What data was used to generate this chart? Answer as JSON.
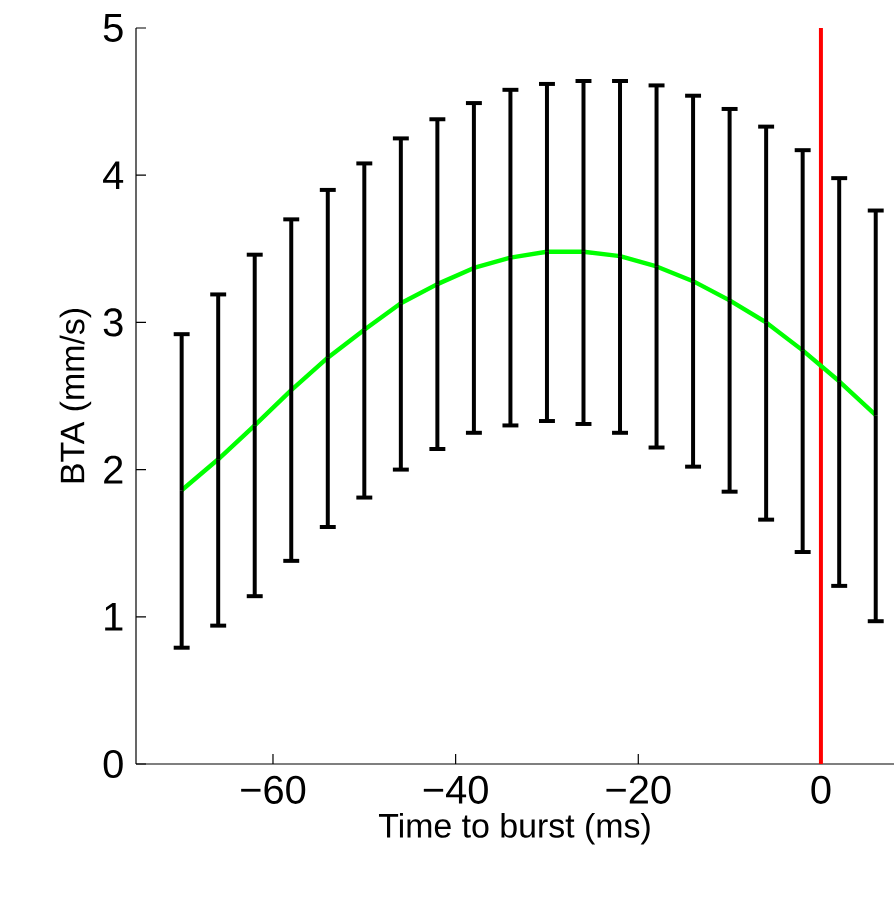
{
  "chart_data": {
    "type": "line",
    "xlabel": "Time to burst (ms)",
    "ylabel": "BTA (mm/s)",
    "x": [
      -70,
      -66,
      -62,
      -58,
      -54,
      -50,
      -46,
      -42,
      -38,
      -34,
      -30,
      -26,
      -22,
      -18,
      -14,
      -10,
      -6,
      -2,
      2,
      6
    ],
    "series": [
      {
        "color": "#00ff00",
        "values": [
          1.86,
          2.07,
          2.3,
          2.54,
          2.76,
          2.95,
          3.13,
          3.26,
          3.37,
          3.44,
          3.48,
          3.48,
          3.45,
          3.38,
          3.28,
          3.15,
          3.0,
          2.81,
          2.6,
          2.37
        ],
        "errors": [
          [
            0.79,
            2.92
          ],
          [
            0.94,
            3.19
          ],
          [
            1.14,
            3.46
          ],
          [
            1.38,
            3.7
          ],
          [
            1.61,
            3.9
          ],
          [
            1.81,
            4.08
          ],
          [
            2.0,
            4.25
          ],
          [
            2.14,
            4.38
          ],
          [
            2.25,
            4.49
          ],
          [
            2.3,
            4.58
          ],
          [
            2.33,
            4.62
          ],
          [
            2.31,
            4.64
          ],
          [
            2.25,
            4.64
          ],
          [
            2.15,
            4.61
          ],
          [
            2.02,
            4.54
          ],
          [
            1.85,
            4.45
          ],
          [
            1.66,
            4.33
          ],
          [
            1.44,
            4.17
          ],
          [
            1.21,
            3.98
          ],
          [
            0.97,
            3.76
          ]
        ]
      }
    ],
    "xlim": [
      -75,
      8
    ],
    "ylim": [
      0,
      5
    ],
    "xticks": [
      {
        "value": -60,
        "label": "−60"
      },
      {
        "value": -40,
        "label": "−40"
      },
      {
        "value": -20,
        "label": "−20"
      },
      0
    ],
    "yticks": [
      0,
      1,
      2,
      3,
      4,
      5
    ],
    "ref_lines": [
      {
        "axis": "x",
        "value": 0,
        "color": "#ff0000"
      }
    ],
    "grid": false,
    "marker": "none",
    "line_style": "solid"
  }
}
